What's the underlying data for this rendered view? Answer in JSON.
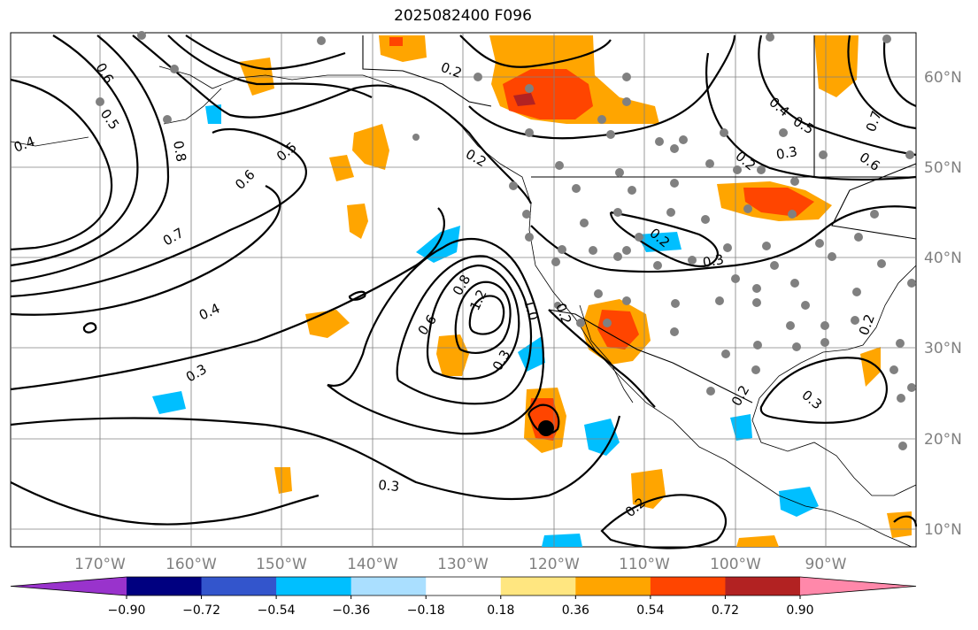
{
  "title": "2025082400 F096",
  "longitude_labels": [
    "170°W",
    "160°W",
    "150°W",
    "140°W",
    "130°W",
    "120°W",
    "110°W",
    "100°W",
    "90°W"
  ],
  "latitude_labels": [
    "60°N",
    "50°N",
    "40°N",
    "30°N",
    "20°N",
    "10°N"
  ],
  "colorbar": {
    "colors": [
      "#9933cc",
      "#000080",
      "#3355cc",
      "#00bfff",
      "#aadfff",
      "#ffffff",
      "#ffe680",
      "#ffa500",
      "#ff4500",
      "#b22222",
      "#ff88aa"
    ],
    "tick_labels": [
      "−0.90",
      "−0.72",
      "−0.54",
      "−0.36",
      "−0.18",
      "0.18",
      "0.36",
      "0.54",
      "0.72",
      "0.90"
    ]
  },
  "contour_labels": [
    "0.6",
    "0.5",
    "0.4",
    "0.8",
    "0.6",
    "0.5",
    "0.7",
    "0.2",
    "0.2",
    "0.4",
    "0.3",
    "0.6",
    "0.8",
    "1.2",
    "1.0",
    "0.2",
    "0.3",
    "0.3",
    "0.2",
    "0.2",
    "0.5",
    "0.3",
    "0.7",
    "0.6",
    "0.2",
    "0.3",
    "0.2",
    "0.3",
    "0.4",
    "0.2"
  ],
  "colors": {
    "contour": "#000000",
    "grid": "#808080",
    "station": "#808080"
  }
}
